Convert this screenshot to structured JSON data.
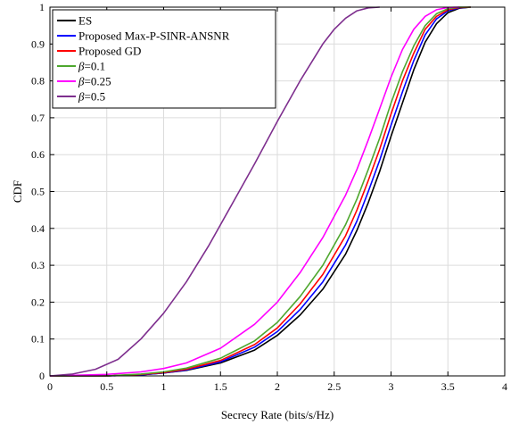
{
  "chart_data": {
    "type": "line",
    "title": "",
    "xlabel": "Secrecy Rate (bits/s/Hz)",
    "ylabel": "CDF",
    "xlim": [
      0,
      4
    ],
    "ylim": [
      0,
      1
    ],
    "xticks": [
      0,
      0.5,
      1,
      1.5,
      2,
      2.5,
      3,
      3.5,
      4
    ],
    "yticks": [
      0,
      0.1,
      0.2,
      0.3,
      0.4,
      0.5,
      0.6,
      0.7,
      0.8,
      0.9,
      1
    ],
    "grid": true,
    "legend_position": "top-left",
    "series": [
      {
        "name": "ES",
        "name_symbol": "",
        "name_rest": "ES",
        "color": "#000000",
        "x": [
          0,
          0.5,
          0.8,
          1.0,
          1.2,
          1.5,
          1.8,
          2.0,
          2.2,
          2.4,
          2.6,
          2.7,
          2.8,
          2.9,
          3.0,
          3.1,
          3.2,
          3.3,
          3.4,
          3.5,
          3.6,
          3.7
        ],
        "y": [
          0,
          0.0,
          0.003,
          0.008,
          0.015,
          0.035,
          0.07,
          0.11,
          0.165,
          0.235,
          0.33,
          0.395,
          0.47,
          0.555,
          0.65,
          0.74,
          0.83,
          0.905,
          0.955,
          0.985,
          0.997,
          1.0
        ]
      },
      {
        "name": "Proposed Max-P-SINR-ANSNR",
        "name_symbol": "",
        "name_rest": "Proposed Max-P-SINR-ANSNR",
        "color": "#0000ff",
        "x": [
          0,
          0.5,
          0.8,
          1.0,
          1.2,
          1.5,
          1.8,
          2.0,
          2.2,
          2.4,
          2.6,
          2.7,
          2.8,
          2.9,
          3.0,
          3.1,
          3.2,
          3.3,
          3.4,
          3.5,
          3.6,
          3.7
        ],
        "y": [
          0,
          0.0,
          0.003,
          0.008,
          0.016,
          0.038,
          0.078,
          0.12,
          0.18,
          0.255,
          0.355,
          0.42,
          0.5,
          0.585,
          0.68,
          0.77,
          0.855,
          0.925,
          0.968,
          0.99,
          0.998,
          1.0
        ]
      },
      {
        "name": "Proposed GD",
        "name_symbol": "",
        "name_rest": "Proposed GD",
        "color": "#ff0000",
        "x": [
          0,
          0.5,
          0.8,
          1.0,
          1.2,
          1.5,
          1.8,
          2.0,
          2.2,
          2.4,
          2.6,
          2.7,
          2.8,
          2.9,
          3.0,
          3.1,
          3.2,
          3.3,
          3.4,
          3.5,
          3.6,
          3.7
        ],
        "y": [
          0,
          0.0,
          0.004,
          0.009,
          0.018,
          0.042,
          0.085,
          0.13,
          0.195,
          0.275,
          0.38,
          0.45,
          0.53,
          0.615,
          0.71,
          0.8,
          0.875,
          0.94,
          0.975,
          0.993,
          0.999,
          1.0
        ]
      },
      {
        "name": "β=0.1",
        "name_symbol": "β",
        "name_rest": "=0.1",
        "color": "#4ea72e",
        "x": [
          0,
          0.5,
          0.8,
          1.0,
          1.2,
          1.5,
          1.8,
          2.0,
          2.2,
          2.4,
          2.6,
          2.7,
          2.8,
          2.9,
          3.0,
          3.1,
          3.2,
          3.3,
          3.4,
          3.5,
          3.6,
          3.7
        ],
        "y": [
          0,
          0.0,
          0.005,
          0.011,
          0.021,
          0.048,
          0.095,
          0.145,
          0.215,
          0.3,
          0.41,
          0.48,
          0.56,
          0.645,
          0.74,
          0.825,
          0.895,
          0.95,
          0.982,
          0.996,
          1.0,
          1.0
        ]
      },
      {
        "name": "β=0.25",
        "name_symbol": "β",
        "name_rest": "=0.25",
        "color": "#ff00ff",
        "x": [
          0,
          0.5,
          0.8,
          1.0,
          1.2,
          1.5,
          1.8,
          2.0,
          2.2,
          2.4,
          2.6,
          2.7,
          2.8,
          2.9,
          3.0,
          3.1,
          3.2,
          3.3,
          3.4,
          3.5,
          3.6
        ],
        "y": [
          0,
          0.004,
          0.011,
          0.02,
          0.035,
          0.075,
          0.14,
          0.2,
          0.28,
          0.375,
          0.49,
          0.56,
          0.64,
          0.725,
          0.81,
          0.885,
          0.94,
          0.975,
          0.993,
          0.999,
          1.0
        ]
      },
      {
        "name": "β=0.5",
        "name_symbol": "β",
        "name_rest": "=0.5",
        "color": "#7e2f8e",
        "x": [
          0,
          0.2,
          0.4,
          0.6,
          0.8,
          1.0,
          1.2,
          1.4,
          1.6,
          1.8,
          2.0,
          2.2,
          2.4,
          2.5,
          2.6,
          2.7,
          2.8,
          2.9
        ],
        "y": [
          0,
          0.005,
          0.018,
          0.045,
          0.1,
          0.17,
          0.255,
          0.355,
          0.465,
          0.575,
          0.69,
          0.8,
          0.9,
          0.94,
          0.97,
          0.99,
          0.998,
          1.0
        ]
      }
    ]
  }
}
